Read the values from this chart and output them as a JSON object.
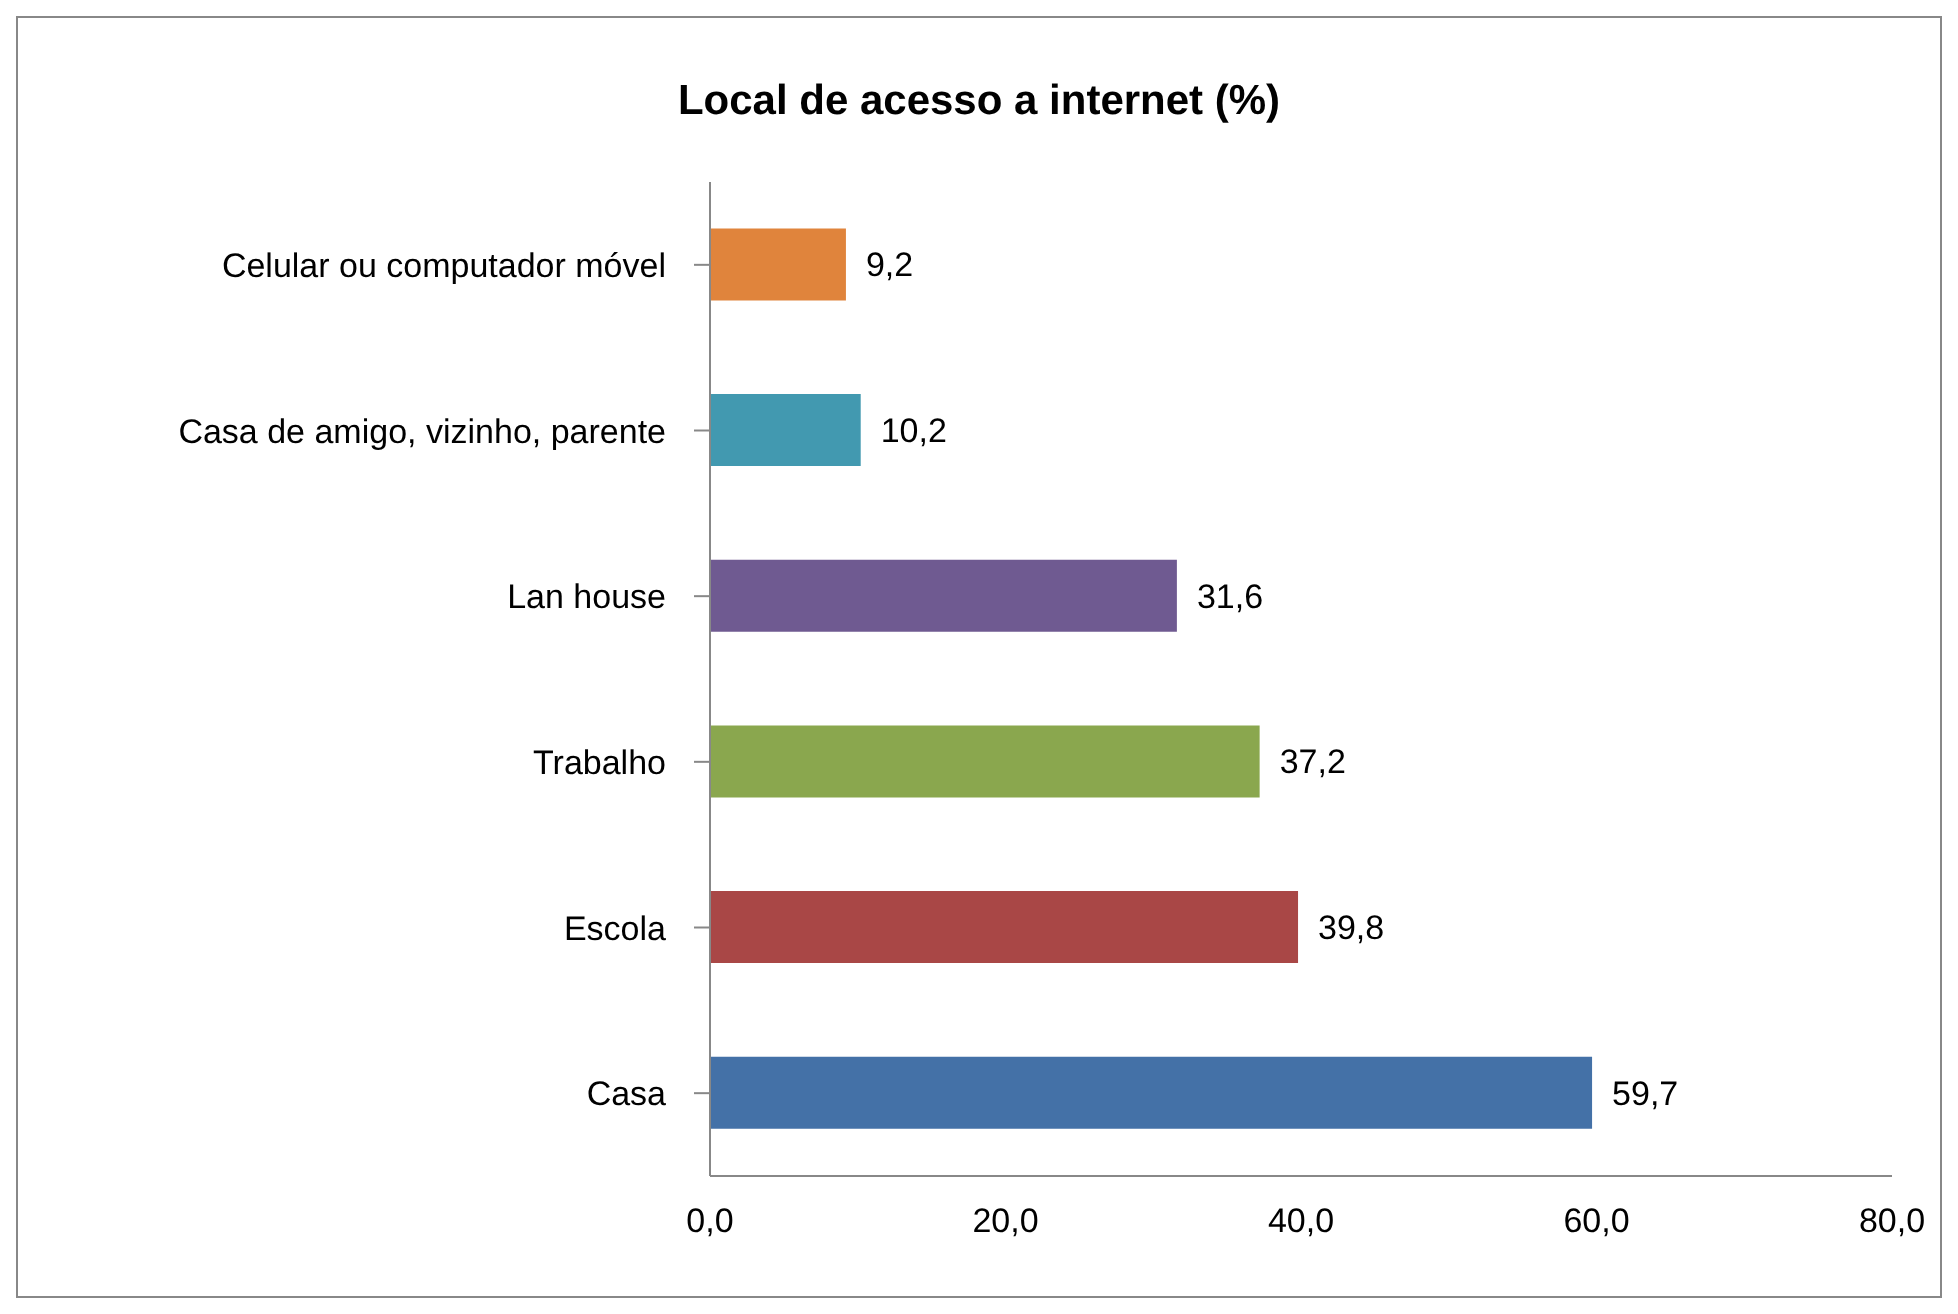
{
  "chart_data": {
    "type": "bar",
    "orientation": "horizontal",
    "title": "Local de acesso a internet (%)",
    "categories": [
      "Celular ou computador móvel",
      "Casa de amigo, vizinho, parente",
      "Lan house",
      "Trabalho",
      "Escola",
      "Casa"
    ],
    "values": [
      9.2,
      10.2,
      31.6,
      37.2,
      39.8,
      59.7
    ],
    "colors": [
      "#e0843c",
      "#4299b0",
      "#6f5a91",
      "#8aa74e",
      "#a94746",
      "#4471a7"
    ],
    "value_labels": [
      "9,2",
      "10,2",
      "31,6",
      "37,2",
      "39,8",
      "59,7"
    ],
    "xlim": [
      0,
      80
    ],
    "xticks": [
      {
        "value": 0,
        "label": "0,0"
      },
      {
        "value": 20,
        "label": "20,0"
      },
      {
        "value": 40,
        "label": "40,0"
      },
      {
        "value": 60,
        "label": "60,0"
      },
      {
        "value": 80,
        "label": "80,0"
      }
    ],
    "grid": false,
    "legend": false
  }
}
